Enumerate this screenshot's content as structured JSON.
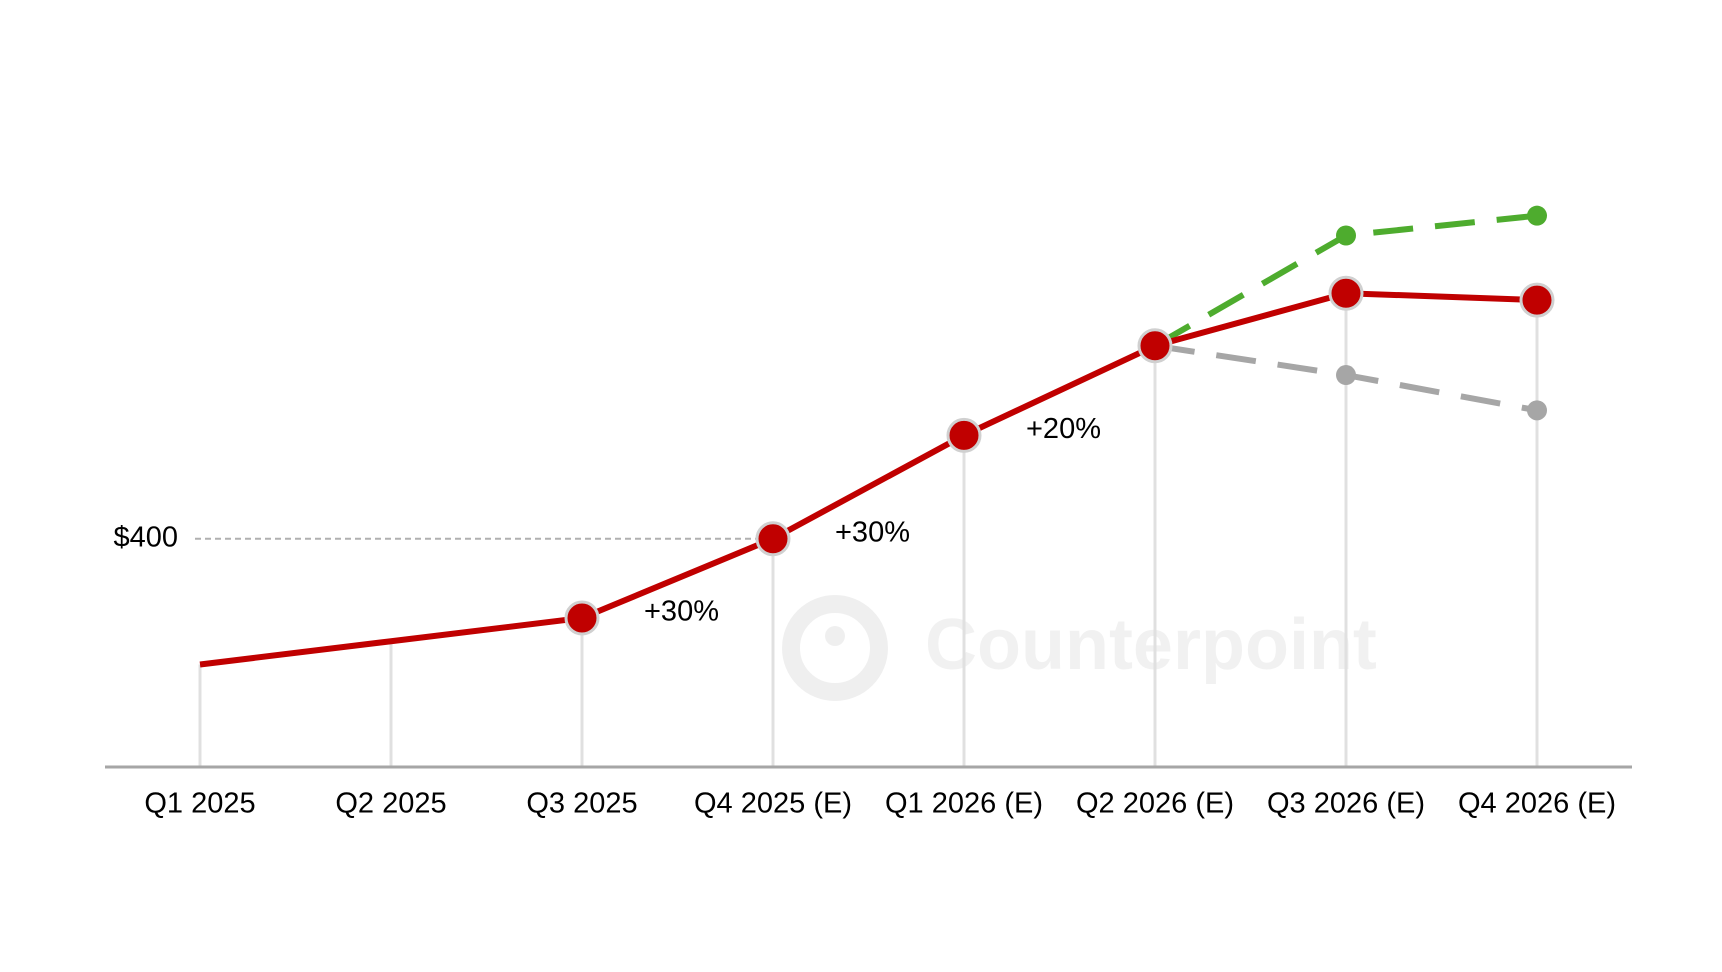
{
  "chart_data": {
    "type": "line",
    "categories": [
      "Q1 2025",
      "Q2 2025",
      "Q3 2025",
      "Q4 2025 (E)",
      "Q1 2026 (E)",
      "Q2 2026 (E)",
      "Q3 2026 (E)",
      "Q4 2026 (E)"
    ],
    "series": [
      {
        "color": "#4eac2e",
        "dashed": true,
        "values": [
          null,
          null,
          null,
          null,
          null,
          624,
          752,
          775
        ]
      },
      {
        "color": "#a6a6a6",
        "dashed": true,
        "values": [
          null,
          null,
          null,
          null,
          null,
          624,
          590,
          549
        ]
      },
      {
        "color": "#c00000",
        "dashed": false,
        "values": [
          254,
          281,
          308,
          400,
          520,
          624,
          685,
          677
        ]
      }
    ],
    "ylim": [
      135,
      900
    ],
    "yticks": [
      {
        "value": 400,
        "label": "$400"
      }
    ],
    "annotations": [
      "+30%",
      "+30%",
      "+20%"
    ],
    "watermark": "Counterpoint"
  }
}
